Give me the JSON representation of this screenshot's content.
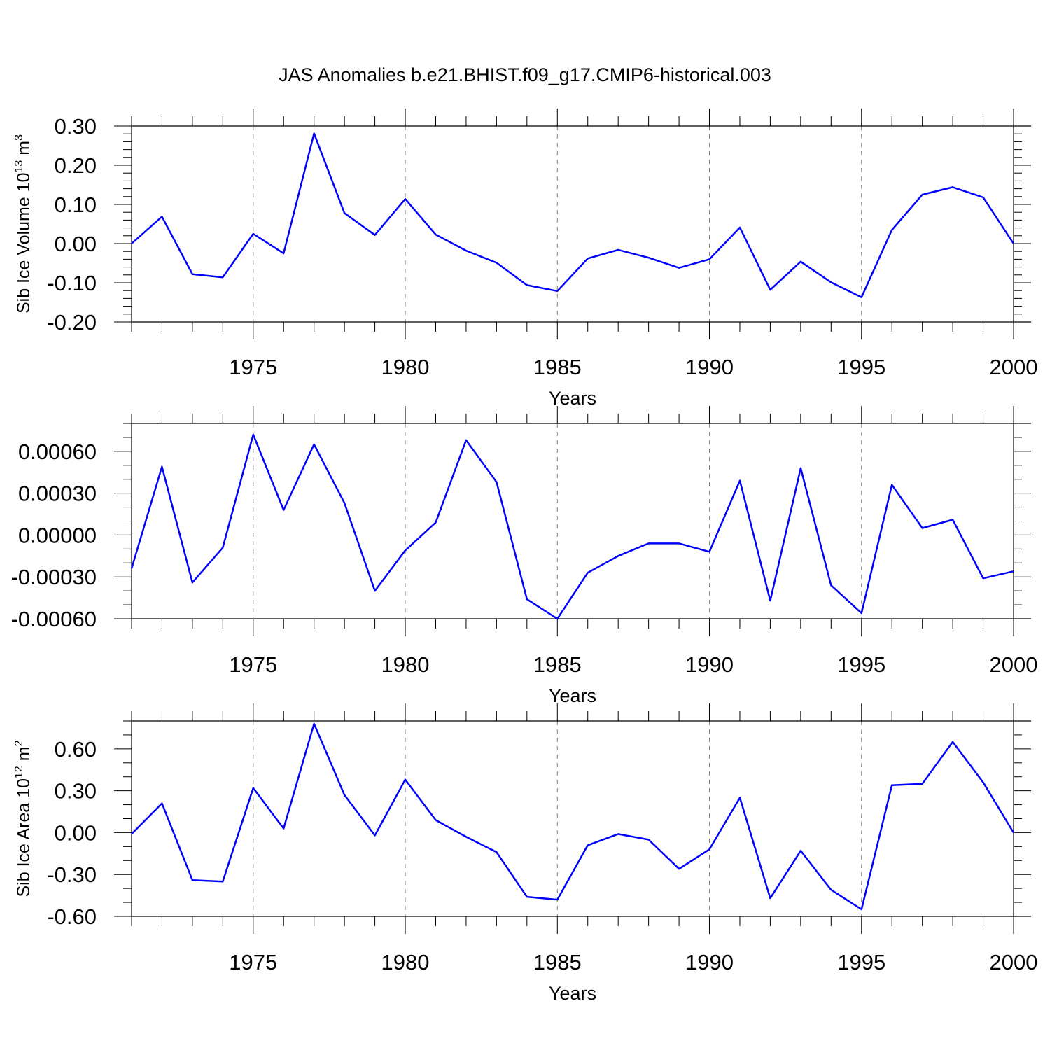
{
  "title": "JAS Anomalies b.e21.BHIST.f09_g17.CMIP6-historical.003",
  "colors": {
    "line": "#0000ff",
    "axis": "#000000",
    "grid": "#808080",
    "background": "#ffffff"
  },
  "chart_data": [
    {
      "type": "line",
      "title": "JAS Anomalies b.e21.BHIST.f09_g17.CMIP6-historical.003",
      "ylabel": "Sib Ice Volume 10",
      "ylabel_sup": "13",
      "ylabel_unit": "m",
      "ylabel_unit_sup": "3",
      "xlabel": "Years",
      "xlim": [
        1971,
        2000
      ],
      "ylim": [
        -0.2,
        0.3
      ],
      "y_ticks": [
        -0.2,
        -0.1,
        0.0,
        0.1,
        0.2,
        0.3
      ],
      "y_tick_labels": [
        "-0.20",
        "-0.10",
        "0.00",
        "0.10",
        "0.20",
        "0.30"
      ],
      "y_minor_step": 0.02,
      "x_ticks": [
        1975,
        1980,
        1985,
        1990,
        1995,
        2000
      ],
      "x_tick_labels": [
        "1975",
        "1980",
        "1985",
        "1990",
        "1995",
        "2000"
      ],
      "grid": "vertical dashed at major x ticks",
      "x": [
        1971,
        1972,
        1973,
        1974,
        1975,
        1976,
        1977,
        1978,
        1979,
        1980,
        1981,
        1982,
        1983,
        1984,
        1985,
        1986,
        1987,
        1988,
        1989,
        1990,
        1991,
        1992,
        1993,
        1994,
        1995,
        1996,
        1997,
        1998,
        1999,
        2000
      ],
      "values": [
        0.0,
        0.069,
        -0.078,
        -0.086,
        0.025,
        -0.025,
        0.281,
        0.078,
        0.022,
        0.114,
        0.023,
        -0.018,
        -0.049,
        -0.106,
        -0.121,
        -0.038,
        -0.016,
        -0.036,
        -0.062,
        -0.04,
        0.041,
        -0.118,
        -0.046,
        -0.099,
        -0.137,
        0.035,
        0.125,
        0.144,
        0.118,
        0.0
      ]
    },
    {
      "type": "line",
      "ylabel": "",
      "xlabel": "Years",
      "xlim": [
        1971,
        2000
      ],
      "ylim": [
        -0.0006,
        0.0008
      ],
      "y_ticks": [
        -0.0006,
        -0.0003,
        0.0,
        0.0003,
        0.0006
      ],
      "y_tick_labels": [
        "-0.00060",
        "-0.00030",
        "0.00000",
        "0.00030",
        "0.00060"
      ],
      "y_minor_step": 0.0001,
      "x_ticks": [
        1975,
        1980,
        1985,
        1990,
        1995,
        2000
      ],
      "x_tick_labels": [
        "1975",
        "1980",
        "1985",
        "1990",
        "1995",
        "2000"
      ],
      "grid": "vertical dashed at major x ticks",
      "x": [
        1971,
        1972,
        1973,
        1974,
        1975,
        1976,
        1977,
        1978,
        1979,
        1980,
        1981,
        1982,
        1983,
        1984,
        1985,
        1986,
        1987,
        1988,
        1989,
        1990,
        1991,
        1992,
        1993,
        1994,
        1995,
        1996,
        1997,
        1998,
        1999,
        2000
      ],
      "values": [
        -0.00024,
        0.00049,
        -0.00034,
        -9e-05,
        0.00072,
        0.00018,
        0.00065,
        0.00023,
        -0.0004,
        -0.00011,
        9e-05,
        0.00068,
        0.00038,
        -0.00046,
        -0.0006,
        -0.00027,
        -0.00015,
        -6e-05,
        -6e-05,
        -0.00012,
        0.00039,
        -0.00047,
        0.00048,
        -0.00036,
        -0.00056,
        0.00036,
        5e-05,
        0.00011,
        -0.00031,
        -0.00026
      ]
    },
    {
      "type": "line",
      "ylabel": "Sib Ice Area 10",
      "ylabel_sup": "12",
      "ylabel_unit": "m",
      "ylabel_unit_sup": "2",
      "xlabel": "Years",
      "xlim": [
        1971,
        2000
      ],
      "ylim": [
        -0.6,
        0.8
      ],
      "y_ticks": [
        -0.6,
        -0.3,
        0.0,
        0.3,
        0.6
      ],
      "y_tick_labels": [
        "-0.60",
        "-0.30",
        "0.00",
        "0.30",
        "0.60"
      ],
      "y_minor_step": 0.1,
      "x_ticks": [
        1975,
        1980,
        1985,
        1990,
        1995,
        2000
      ],
      "x_tick_labels": [
        "1975",
        "1980",
        "1985",
        "1990",
        "1995",
        "2000"
      ],
      "grid": "vertical dashed at major x ticks",
      "x": [
        1971,
        1972,
        1973,
        1974,
        1975,
        1976,
        1977,
        1978,
        1979,
        1980,
        1981,
        1982,
        1983,
        1984,
        1985,
        1986,
        1987,
        1988,
        1989,
        1990,
        1991,
        1992,
        1993,
        1994,
        1995,
        1996,
        1997,
        1998,
        1999,
        2000
      ],
      "values": [
        -0.01,
        0.21,
        -0.34,
        -0.35,
        0.32,
        0.03,
        0.78,
        0.27,
        -0.02,
        0.38,
        0.09,
        -0.03,
        -0.14,
        -0.46,
        -0.48,
        -0.09,
        -0.01,
        -0.05,
        -0.26,
        -0.12,
        0.25,
        -0.47,
        -0.13,
        -0.41,
        -0.55,
        0.34,
        0.35,
        0.65,
        0.36,
        0.0
      ]
    }
  ]
}
